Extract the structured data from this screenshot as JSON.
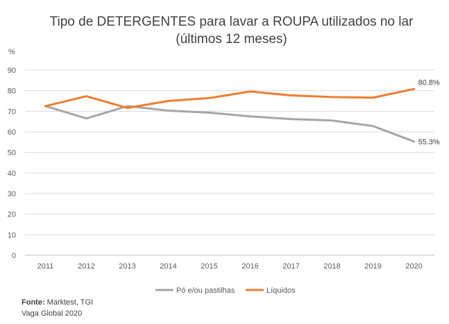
{
  "chart_data": {
    "type": "line",
    "title": "Tipo de DETERGENTES para lavar a ROUPA utilizados no lar",
    "subtitle": "(últimos 12 meses)",
    "ylabel": "%",
    "xlabel": "",
    "ylim": [
      0,
      90
    ],
    "yticks": [
      "0",
      "10",
      "20",
      "30",
      "40",
      "50",
      "60",
      "70",
      "80",
      "90"
    ],
    "categories": [
      "2011",
      "2012",
      "2013",
      "2014",
      "2015",
      "2016",
      "2017",
      "2018",
      "2019",
      "2020"
    ],
    "grid": true,
    "legend_position": "bottom",
    "series": [
      {
        "name": "Pó e/ou pastilhas",
        "color": "#a5a5a5",
        "values": [
          72.5,
          66.5,
          72.5,
          70.3,
          69.3,
          67.5,
          66.2,
          65.5,
          62.8,
          55.3
        ],
        "end_label": "55.3%"
      },
      {
        "name": "Líquidos",
        "color": "#ed7d31",
        "values": [
          72.5,
          77.3,
          71.6,
          75.0,
          76.4,
          79.6,
          77.7,
          76.9,
          76.6,
          80.8
        ],
        "end_label": "80.8%"
      }
    ]
  },
  "source": {
    "label": "Fonte:",
    "text": " Marktest, TGI",
    "line2": "Vaga Global 2020"
  }
}
